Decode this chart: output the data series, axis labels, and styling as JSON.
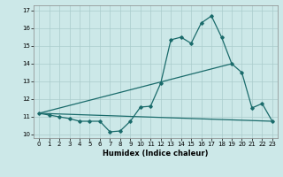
{
  "title": "",
  "xlabel": "Humidex (Indice chaleur)",
  "xlim": [
    -0.5,
    23.5
  ],
  "ylim": [
    9.8,
    17.3
  ],
  "yticks": [
    10,
    11,
    12,
    13,
    14,
    15,
    16,
    17
  ],
  "xticks": [
    0,
    1,
    2,
    3,
    4,
    5,
    6,
    7,
    8,
    9,
    10,
    11,
    12,
    13,
    14,
    15,
    16,
    17,
    18,
    19,
    20,
    21,
    22,
    23
  ],
  "bg_color": "#cce8e8",
  "line_color": "#1a6b6b",
  "grid_color": "#aacccc",
  "line1_x": [
    0,
    1,
    2,
    3,
    4,
    5,
    6,
    7,
    8,
    9,
    10,
    11,
    12,
    13,
    14,
    15,
    16,
    17,
    18,
    19,
    20,
    21,
    22,
    23
  ],
  "line1_y": [
    11.2,
    11.1,
    11.0,
    10.9,
    10.75,
    10.75,
    10.75,
    10.15,
    10.2,
    10.75,
    11.55,
    11.6,
    12.9,
    15.35,
    15.5,
    15.15,
    16.3,
    16.7,
    15.5,
    14.0,
    13.5,
    11.5,
    11.75,
    10.75
  ],
  "line2_x": [
    0,
    23
  ],
  "line2_y": [
    11.2,
    10.75
  ],
  "line3_x": [
    0,
    19
  ],
  "line3_y": [
    11.2,
    14.0
  ]
}
